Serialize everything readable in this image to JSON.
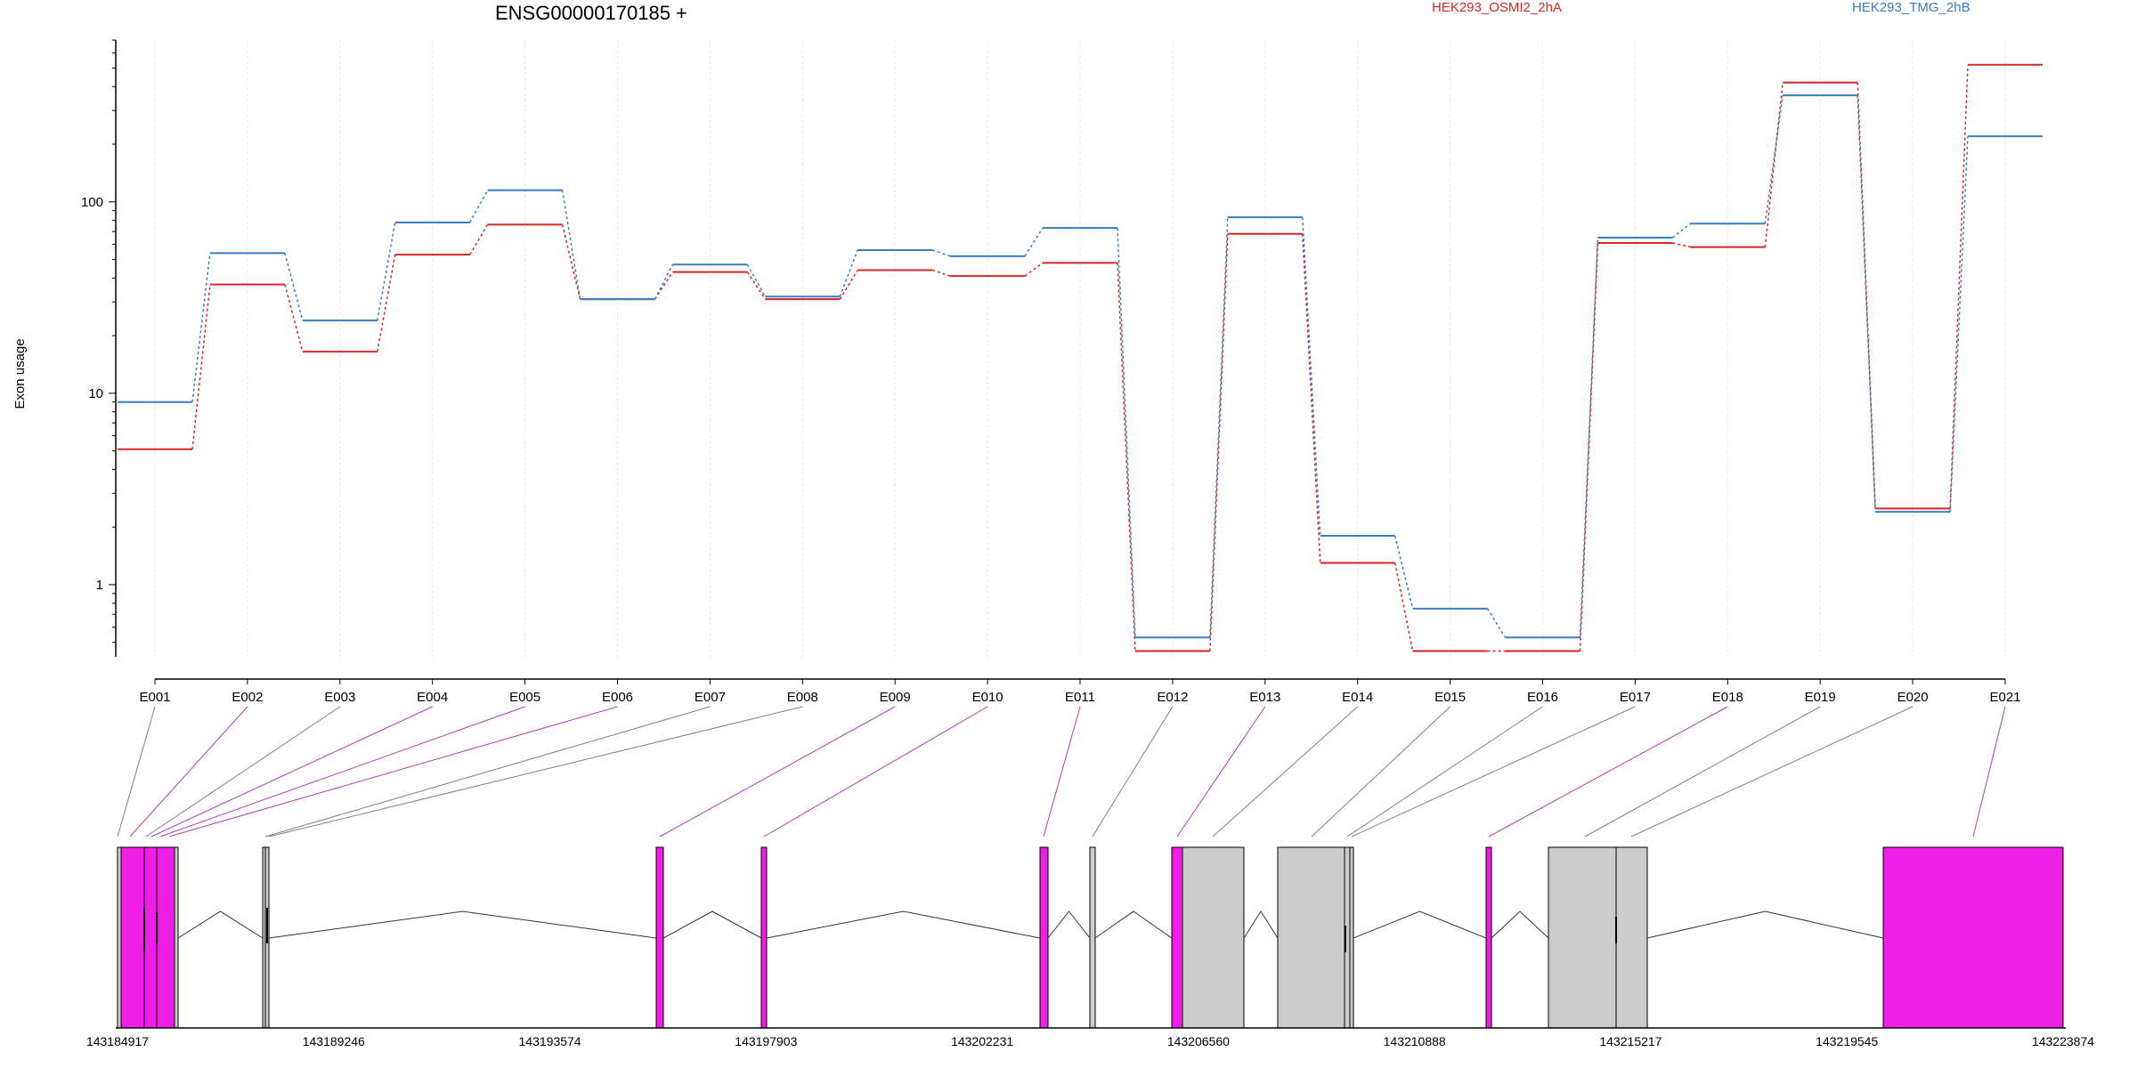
{
  "chart_data": {
    "type": "line",
    "title": "ENSG00000170185 +",
    "ylabel": "Exon usage",
    "yscale": "log",
    "ylim": [
      0.42,
      700
    ],
    "yticks": [
      1,
      10,
      100
    ],
    "legend_placement": "top-right",
    "categories": [
      "E001",
      "E002",
      "E003",
      "E004",
      "E005",
      "E006",
      "E007",
      "E008",
      "E009",
      "E010",
      "E011",
      "E012",
      "E013",
      "E014",
      "E015",
      "E016",
      "E017",
      "E018",
      "E019",
      "E020",
      "E021"
    ],
    "series": [
      {
        "name": "HEK293_OSMI2_2hA",
        "color": "#d62728",
        "values": [
          5.1,
          37,
          16.5,
          53,
          76,
          31,
          43,
          31,
          44,
          41,
          48,
          0.45,
          68,
          1.3,
          0.45,
          0.45,
          61,
          58,
          420,
          2.5,
          520
        ]
      },
      {
        "name": "HEK293_TMG_2hB",
        "color": "#3a7ebf",
        "values": [
          9,
          54,
          24,
          78,
          115,
          31,
          47,
          32,
          56,
          52,
          73,
          0.53,
          83,
          1.8,
          0.75,
          0.53,
          65,
          77,
          360,
          2.4,
          220
        ]
      }
    ],
    "gene_model": {
      "coordinate_ticks": [
        "143184917",
        "143189246",
        "143193574",
        "143197903",
        "143202231",
        "143206560",
        "143210888",
        "143215217",
        "143219545",
        "143223874"
      ],
      "colors": {
        "highlighted_exon": "#ee1ee6",
        "exon": "#cccccc",
        "outline": "#000000",
        "connector_highlight": "#b040b0",
        "connector": "#808080"
      }
    }
  }
}
